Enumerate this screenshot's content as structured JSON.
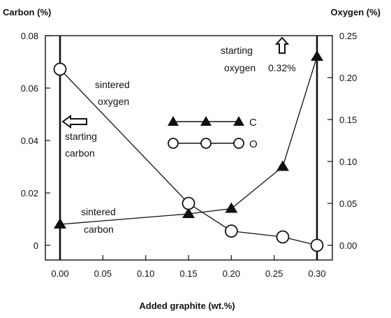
{
  "chart_data": {
    "type": "line",
    "left_axis_title": "Carbon (%)",
    "right_axis_title": "Oxygen (%)",
    "xlabel": "Added graphite (wt.%)",
    "xlim": [
      0,
      0.3
    ],
    "x_ticks": [
      "0.00",
      "0.05",
      "0.10",
      "0.15",
      "0.20",
      "0.25",
      "0.30"
    ],
    "ylim_left": [
      0,
      0.08
    ],
    "y_left_ticks": [
      "0",
      "0.02",
      "0.04",
      "0.06",
      "0.08"
    ],
    "ylim_right": [
      0,
      0.25
    ],
    "y_right_ticks": [
      "0.00",
      "0.05",
      "0.10",
      "0.15",
      "0.20",
      "0.25"
    ],
    "grid": false,
    "series": [
      {
        "name": "C",
        "axis": "left",
        "marker": "filled-triangle",
        "x": [
          0.0,
          0.15,
          0.2,
          0.26,
          0.3
        ],
        "y": [
          0.008,
          0.012,
          0.014,
          0.03,
          0.072
        ]
      },
      {
        "name": "O",
        "axis": "right",
        "marker": "open-circle",
        "x": [
          0.0,
          0.15,
          0.2,
          0.26,
          0.3
        ],
        "y": [
          0.21,
          0.05,
          0.017,
          0.01,
          0.0
        ]
      }
    ],
    "legend": {
      "placement": "center",
      "entries": [
        {
          "label": "C",
          "marker": "filled-triangle"
        },
        {
          "label": "O",
          "marker": "open-circle"
        }
      ]
    },
    "annotations": {
      "sintered_oxygen": [
        "sintered",
        "oxygen"
      ],
      "starting_carbon": [
        "starting",
        "carbon"
      ],
      "sintered_carbon": [
        "sintered",
        "carbon"
      ],
      "starting_oxygen": [
        "starting",
        "oxygen",
        "0.32%"
      ]
    },
    "colors": {
      "line": "#111111",
      "axes": "#111111"
    }
  }
}
